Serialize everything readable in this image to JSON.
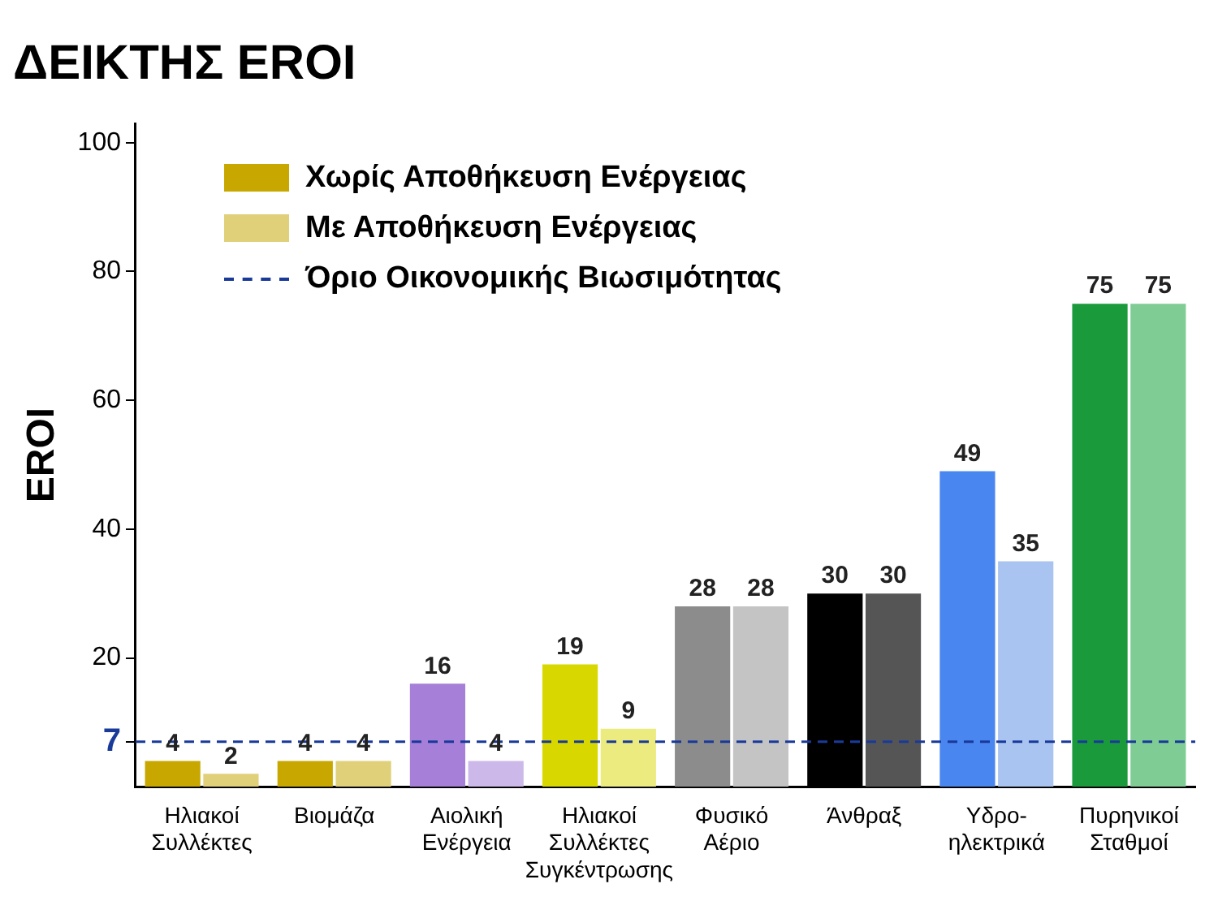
{
  "chart_data": {
    "type": "bar",
    "title": "ΔΕΙΚΤΗΣ EROI",
    "ylabel": "EROI",
    "categories": [
      "Ηλιακοί Συλλέκτες",
      "Βιομάζα",
      "Αιολική Ενέργεια",
      "Ηλιακοί Συλλέκτες Συγκέντρωσης",
      "Φυσικό Αέριο",
      "Άνθραξ",
      "Υδρο-ηλεκτρικά",
      "Πυρηνικοί Σταθμοί"
    ],
    "series": [
      {
        "name": "Χωρίς Αποθήκευση Ενέργειας",
        "values": [
          4,
          4,
          16,
          19,
          28,
          30,
          49,
          75
        ],
        "colors": [
          "#c8a800",
          "#c8a800",
          "#a57fd8",
          "#d8d800",
          "#8c8c8c",
          "#000000",
          "#4a86f0",
          "#1a9a3a"
        ]
      },
      {
        "name": "Με Αποθήκευση Ενέργειας",
        "values": [
          2,
          4,
          4,
          9,
          28,
          30,
          35,
          75
        ],
        "colors": [
          "#e0d07a",
          "#e0d07a",
          "#cdb8ea",
          "#ebeb80",
          "#c4c4c4",
          "#555555",
          "#a9c4f0",
          "#7fcc95"
        ]
      }
    ],
    "ylim": [
      0,
      103
    ],
    "yticks": [
      {
        "value": 7,
        "label": "7"
      },
      20,
      40,
      60,
      80,
      100
    ],
    "ref_lines": [
      {
        "axis": "y",
        "value": 7,
        "label": "Όριο Οικονομικής Βιωσιμότητας",
        "color": "#1a3a9a",
        "line_style": "dashed"
      }
    ],
    "data_labels": true,
    "grid": false,
    "legend": "top left"
  }
}
